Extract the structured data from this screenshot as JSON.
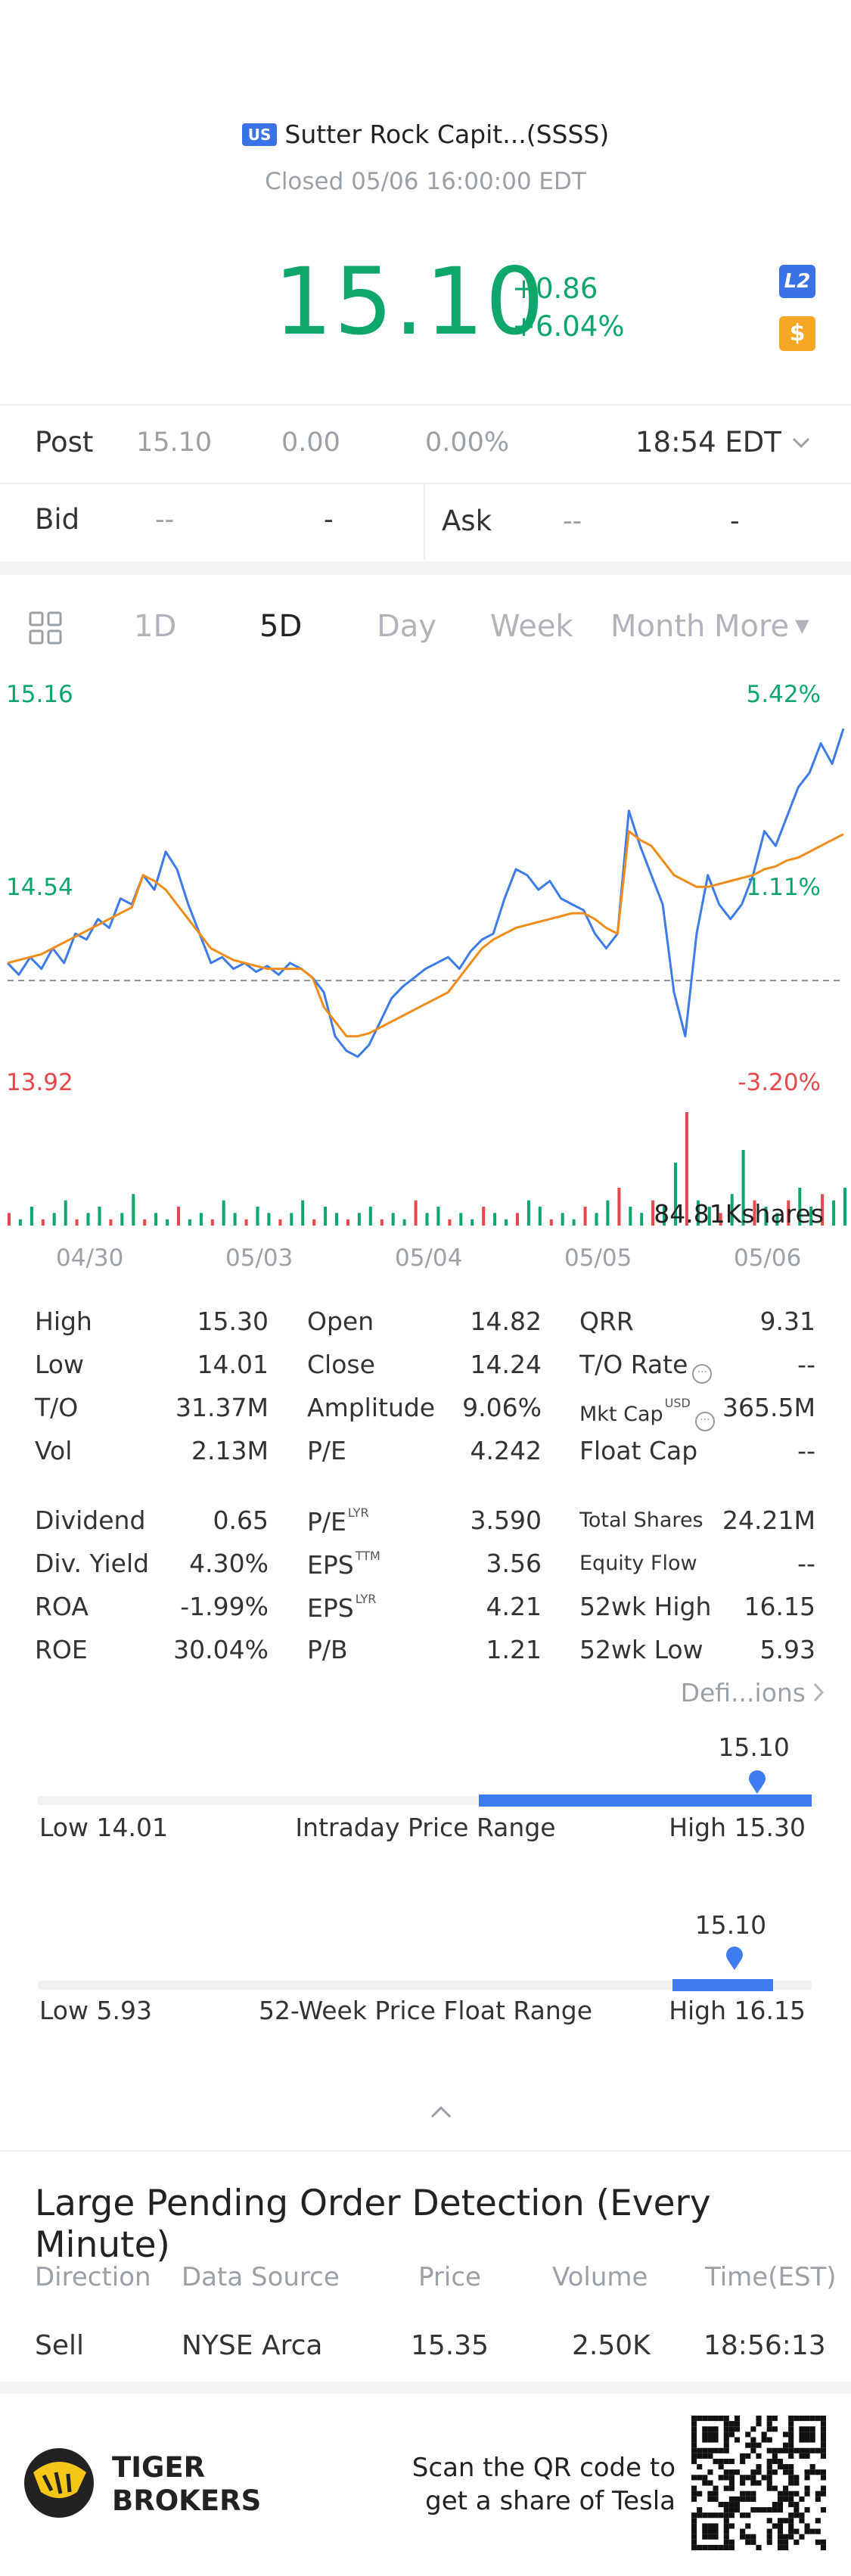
{
  "header": {
    "market_badge": "US",
    "title": "Sutter Rock Capit...(SSSS)",
    "status": "Closed 05/06 16:00:00 EDT",
    "price": "15.10",
    "change": "+0.86",
    "change_pct": "+6.04%",
    "l2_badge": "L2",
    "usd_badge": "$"
  },
  "post": {
    "label": "Post",
    "price": "15.10",
    "change": "0.00",
    "change_pct": "0.00%",
    "time": "18:54 EDT"
  },
  "quote": {
    "bid_label": "Bid",
    "bid_price": "--",
    "bid_size": "-",
    "ask_label": "Ask",
    "ask_price": "--",
    "ask_size": "-"
  },
  "tabs": [
    "1D",
    "5D",
    "Day",
    "Week",
    "Month",
    "More"
  ],
  "active_tab": "5D",
  "chart_data": {
    "type": "line",
    "y_left_labels": [
      "15.16",
      "14.54",
      "13.92"
    ],
    "y_right_labels": [
      "5.42%",
      "1.11%",
      "-3.20%"
    ],
    "ylim": [
      13.92,
      15.16
    ],
    "prev_close": 14.24,
    "x_labels": [
      "04/30",
      "05/03",
      "05/04",
      "05/05",
      "05/06"
    ],
    "volume_label": "84.81Kshares",
    "series": [
      {
        "color": "#3c7be8",
        "values": [
          14.3,
          14.26,
          14.32,
          14.28,
          14.35,
          14.3,
          14.4,
          14.38,
          14.45,
          14.42,
          14.52,
          14.5,
          14.6,
          14.55,
          14.68,
          14.62,
          14.5,
          14.4,
          14.3,
          14.32,
          14.28,
          14.3,
          14.27,
          14.29,
          14.26,
          14.3,
          14.28,
          14.25,
          14.2,
          14.05,
          14.0,
          13.98,
          14.02,
          14.1,
          14.18,
          14.22,
          14.25,
          14.28,
          14.3,
          14.32,
          14.28,
          14.34,
          14.38,
          14.4,
          14.52,
          14.62,
          14.6,
          14.55,
          14.58,
          14.52,
          14.5,
          14.48,
          14.4,
          14.35,
          14.4,
          14.82,
          14.7,
          14.6,
          14.5,
          14.2,
          14.05,
          14.4,
          14.6,
          14.5,
          14.45,
          14.5,
          14.6,
          14.75,
          14.7,
          14.8,
          14.9,
          14.95,
          15.05,
          14.98,
          15.1
        ]
      },
      {
        "color": "#f08c1a",
        "values": [
          14.3,
          14.31,
          14.32,
          14.33,
          14.35,
          14.37,
          14.39,
          14.41,
          14.43,
          14.45,
          14.47,
          14.49,
          14.6,
          14.58,
          14.55,
          14.5,
          14.45,
          14.4,
          14.35,
          14.33,
          14.31,
          14.3,
          14.29,
          14.28,
          14.28,
          14.28,
          14.28,
          14.25,
          14.15,
          14.1,
          14.05,
          14.05,
          14.06,
          14.08,
          14.1,
          14.12,
          14.14,
          14.16,
          14.18,
          14.2,
          14.25,
          14.3,
          14.35,
          14.38,
          14.4,
          14.42,
          14.43,
          14.44,
          14.45,
          14.46,
          14.47,
          14.47,
          14.45,
          14.42,
          14.4,
          14.75,
          14.72,
          14.7,
          14.65,
          14.6,
          14.58,
          14.56,
          14.56,
          14.57,
          14.58,
          14.59,
          14.6,
          14.62,
          14.63,
          14.65,
          14.66,
          14.68,
          14.7,
          14.72,
          14.74
        ]
      }
    ],
    "volumes": [
      2,
      1,
      3,
      1,
      2,
      4,
      1,
      2,
      3,
      1,
      2,
      5,
      1,
      2,
      1,
      3,
      1,
      2,
      1,
      4,
      2,
      1,
      3,
      2,
      1,
      2,
      4,
      1,
      3,
      2,
      1,
      2,
      3,
      1,
      2,
      1,
      4,
      2,
      3,
      1,
      2,
      1,
      3,
      2,
      1,
      2,
      4,
      3,
      1,
      2,
      1,
      3,
      2,
      4,
      6,
      3,
      2,
      4,
      3,
      10,
      18,
      4,
      3,
      2,
      5,
      12,
      4,
      3,
      2,
      4,
      6,
      3,
      5,
      4,
      6
    ]
  },
  "stats": {
    "col1": [
      [
        "High",
        "15.30"
      ],
      [
        "Low",
        "14.01"
      ],
      [
        "T/O",
        "31.37M"
      ],
      [
        "Vol",
        "2.13M"
      ],
      [
        "Dividend",
        "0.65"
      ],
      [
        "Div. Yield",
        "4.30%"
      ],
      [
        "ROA",
        "-1.99%"
      ],
      [
        "ROE",
        "30.04%"
      ]
    ],
    "col2": [
      [
        "Open",
        "14.82"
      ],
      [
        "Close",
        "14.24"
      ],
      [
        "Amplitude",
        "9.06%"
      ],
      [
        "P/E",
        "4.242"
      ],
      [
        "P/E",
        "3.590",
        "LYR"
      ],
      [
        "EPS",
        "3.56",
        "TTM"
      ],
      [
        "EPS",
        "4.21",
        "LYR"
      ],
      [
        "P/B",
        "1.21"
      ]
    ],
    "col3": [
      [
        "QRR",
        "9.31"
      ],
      [
        "T/O Rate",
        "--"
      ],
      [
        "Mkt Cap",
        "365.5M",
        "USD"
      ],
      [
        "Float Cap",
        "--"
      ],
      [
        "Total Shares",
        "24.21M"
      ],
      [
        "Equity Flow",
        "--"
      ],
      [
        "52wk High",
        "16.15"
      ],
      [
        "52wk Low",
        "5.93"
      ]
    ],
    "definitions": "Defi...ions"
  },
  "ranges": {
    "intraday": {
      "low_label": "Low 14.01",
      "title": "Intraday Price Range",
      "high_label": "High 15.30",
      "current": "15.10",
      "fill_from": 0.57,
      "fill_to": 1.0,
      "marker": 0.93
    },
    "week52": {
      "low_label": "Low 5.93",
      "title": "52-Week Price Float Range",
      "high_label": "High 16.15",
      "current": "15.10",
      "fill_from": 0.82,
      "fill_to": 0.95,
      "marker": 0.9
    }
  },
  "orders": {
    "title": "Large Pending Order Detection (Every Minute)",
    "headers": [
      "Direction",
      "Data Source",
      "Price",
      "Volume",
      "Time(EST)"
    ],
    "row": [
      "Sell",
      "NYSE Arca",
      "15.35",
      "2.50K",
      "18:56:13"
    ]
  },
  "footer": {
    "brand_line1": "TIGER",
    "brand_line2": "BROKERS",
    "promo_line1": "Scan the QR code to",
    "promo_line2": "get a share of Tesla"
  }
}
